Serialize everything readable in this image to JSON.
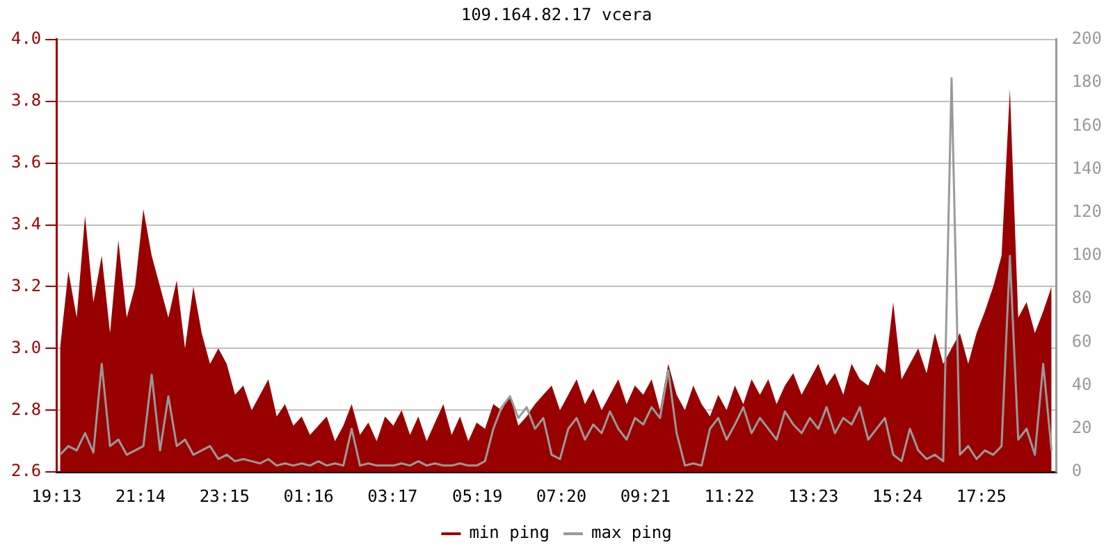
{
  "chart_data": {
    "type": "line",
    "title": "109.164.82.17 vcera",
    "xlim": [
      "--01-01T19:13",
      "--01-02T19:13"
    ],
    "xticks": [
      {
        "value": "--01-01T19:13",
        "label": "19:13"
      },
      {
        "value": "--01-01T21:14",
        "label": "21:14"
      },
      {
        "value": "--01-01T23:15",
        "label": "23:15"
      },
      {
        "value": "--01-02T01:16",
        "label": "01:16"
      },
      {
        "value": "--01-02T03:17",
        "label": "03:17"
      },
      {
        "value": "--01-02T05:19",
        "label": "05:19"
      },
      {
        "value": "--01-02T07:20",
        "label": "07:20"
      },
      {
        "value": "--01-02T09:21",
        "label": "09:21"
      },
      {
        "value": "--01-02T11:22",
        "label": "11:22"
      },
      {
        "value": "--01-02T13:23",
        "label": "13:23"
      },
      {
        "value": "--01-02T15:24",
        "label": "15:24"
      },
      {
        "value": "--01-02T17:25",
        "label": "17:25"
      }
    ],
    "x": [
      "--01-01T19:18",
      "--01-01T19:30",
      "--01-01T19:42",
      "--01-01T19:54",
      "--01-01T20:06",
      "--01-01T20:18",
      "--01-01T20:30",
      "--01-01T20:42",
      "--01-01T20:54",
      "--01-01T21:06",
      "--01-01T21:18",
      "--01-01T21:30",
      "--01-01T21:42",
      "--01-01T21:54",
      "--01-01T22:06",
      "--01-01T22:18",
      "--01-01T22:30",
      "--01-01T22:42",
      "--01-01T22:54",
      "--01-01T23:06",
      "--01-01T23:18",
      "--01-01T23:30",
      "--01-01T23:42",
      "--01-01T23:54",
      "--01-02T00:06",
      "--01-02T00:18",
      "--01-02T00:30",
      "--01-02T00:42",
      "--01-02T00:54",
      "--01-02T01:06",
      "--01-02T01:18",
      "--01-02T01:30",
      "--01-02T01:42",
      "--01-02T01:54",
      "--01-02T02:06",
      "--01-02T02:18",
      "--01-02T02:30",
      "--01-02T02:42",
      "--01-02T02:54",
      "--01-02T03:06",
      "--01-02T03:18",
      "--01-02T03:30",
      "--01-02T03:42",
      "--01-02T03:54",
      "--01-02T04:06",
      "--01-02T04:18",
      "--01-02T04:30",
      "--01-02T04:42",
      "--01-02T04:54",
      "--01-02T05:06",
      "--01-02T05:18",
      "--01-02T05:30",
      "--01-02T05:42",
      "--01-02T05:54",
      "--01-02T06:06",
      "--01-02T06:18",
      "--01-02T06:30",
      "--01-02T06:42",
      "--01-02T06:54",
      "--01-02T07:06",
      "--01-02T07:18",
      "--01-02T07:30",
      "--01-02T07:42",
      "--01-02T07:54",
      "--01-02T08:06",
      "--01-02T08:18",
      "--01-02T08:30",
      "--01-02T08:42",
      "--01-02T08:54",
      "--01-02T09:06",
      "--01-02T09:18",
      "--01-02T09:30",
      "--01-02T09:42",
      "--01-02T09:54",
      "--01-02T10:06",
      "--01-02T10:18",
      "--01-02T10:30",
      "--01-02T10:42",
      "--01-02T10:54",
      "--01-02T11:06",
      "--01-02T11:18",
      "--01-02T11:30",
      "--01-02T11:42",
      "--01-02T11:54",
      "--01-02T12:06",
      "--01-02T12:18",
      "--01-02T12:30",
      "--01-02T12:42",
      "--01-02T12:54",
      "--01-02T13:06",
      "--01-02T13:18",
      "--01-02T13:30",
      "--01-02T13:42",
      "--01-02T13:54",
      "--01-02T14:06",
      "--01-02T14:18",
      "--01-02T14:30",
      "--01-02T14:42",
      "--01-02T14:54",
      "--01-02T15:06",
      "--01-02T15:18",
      "--01-02T15:30",
      "--01-02T15:42",
      "--01-02T15:54",
      "--01-02T16:06",
      "--01-02T16:18",
      "--01-02T16:30",
      "--01-02T16:42",
      "--01-02T16:54",
      "--01-02T17:06",
      "--01-02T17:18",
      "--01-02T17:30",
      "--01-02T17:42",
      "--01-02T17:54",
      "--01-02T18:06",
      "--01-02T18:18",
      "--01-02T18:30",
      "--01-02T18:42",
      "--01-02T18:54",
      "--01-02T19:06"
    ],
    "ylim": [
      2.6,
      4.0
    ],
    "yticks": [
      2.6,
      {
        "value": 2.8,
        "label": "2.8"
      },
      {
        "value": 3.0,
        "label": "3.0"
      },
      3.2,
      3.4,
      3.6,
      3.8,
      {
        "value": 4.0,
        "label": "4.0"
      }
    ],
    "y2lim": [
      0,
      200
    ],
    "y2ticks": [
      0,
      20,
      40,
      60,
      80,
      100,
      120,
      140,
      160,
      180,
      200
    ],
    "grid": "y",
    "legend": "bottom",
    "marker": "none",
    "line_style": "solid",
    "series": [
      {
        "name": "min ping",
        "type": "area",
        "color": "#990000",
        "values": [
          3.0,
          3.25,
          3.1,
          3.43,
          3.15,
          3.3,
          3.05,
          3.35,
          3.1,
          3.2,
          3.45,
          3.3,
          3.2,
          3.1,
          3.22,
          3.0,
          3.2,
          3.05,
          2.95,
          3.0,
          2.95,
          2.85,
          2.88,
          2.8,
          2.85,
          2.9,
          2.78,
          2.82,
          2.75,
          2.78,
          2.72,
          2.75,
          2.78,
          2.7,
          2.75,
          2.82,
          2.72,
          2.76,
          2.7,
          2.78,
          2.75,
          2.8,
          2.72,
          2.78,
          2.7,
          2.76,
          2.82,
          2.72,
          2.78,
          2.7,
          2.76,
          2.74,
          2.82,
          2.8,
          2.85,
          2.75,
          2.78,
          2.82,
          2.85,
          2.88,
          2.8,
          2.85,
          2.9,
          2.82,
          2.87,
          2.8,
          2.85,
          2.9,
          2.82,
          2.88,
          2.85,
          2.9,
          2.8,
          2.95,
          2.85,
          2.8,
          2.88,
          2.82,
          2.78,
          2.85,
          2.8,
          2.88,
          2.82,
          2.9,
          2.85,
          2.9,
          2.82,
          2.88,
          2.92,
          2.85,
          2.9,
          2.95,
          2.88,
          2.92,
          2.85,
          2.95,
          2.9,
          2.88,
          2.95,
          2.92,
          3.15,
          2.9,
          2.95,
          3.0,
          2.92,
          3.05,
          2.95,
          3.0,
          3.05,
          2.95,
          3.05,
          3.12,
          3.2,
          3.3,
          3.84,
          3.1,
          3.15,
          3.05,
          3.12,
          3.2
        ]
      },
      {
        "name": "max ping",
        "axis": "y2",
        "color": "#999999",
        "values": [
          8,
          12,
          10,
          18,
          9,
          50,
          12,
          15,
          8,
          10,
          12,
          45,
          10,
          35,
          12,
          15,
          8,
          10,
          12,
          6,
          8,
          5,
          6,
          5,
          4,
          6,
          3,
          4,
          3,
          4,
          3,
          5,
          3,
          4,
          3,
          20,
          3,
          4,
          3,
          3,
          3,
          4,
          3,
          5,
          3,
          4,
          3,
          3,
          4,
          3,
          3,
          5,
          20,
          30,
          35,
          25,
          30,
          20,
          25,
          8,
          6,
          20,
          25,
          15,
          22,
          18,
          28,
          20,
          15,
          25,
          22,
          30,
          25,
          47,
          18,
          3,
          4,
          3,
          20,
          25,
          15,
          22,
          30,
          18,
          25,
          20,
          15,
          28,
          22,
          18,
          25,
          20,
          30,
          18,
          25,
          22,
          30,
          15,
          20,
          25,
          8,
          5,
          20,
          10,
          6,
          8,
          5,
          182,
          8,
          12,
          6,
          10,
          8,
          12,
          100,
          15,
          20,
          8,
          50,
          10
        ]
      }
    ]
  }
}
